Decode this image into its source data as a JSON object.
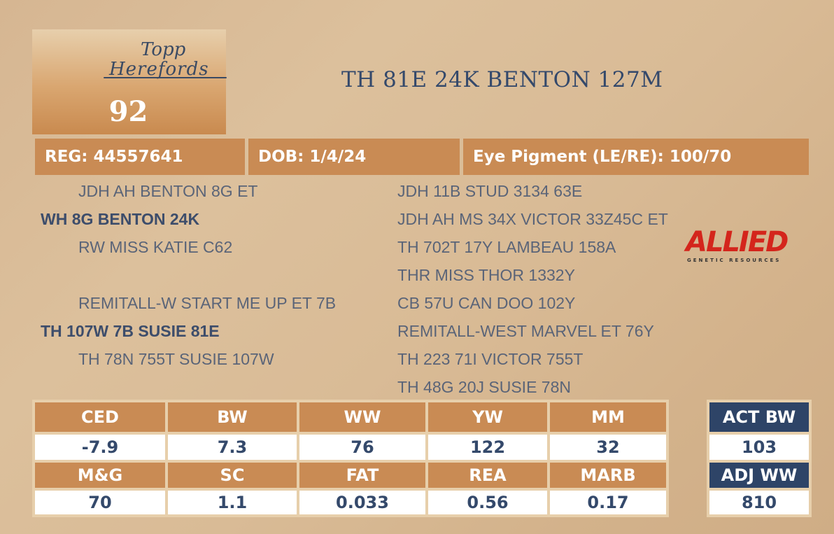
{
  "logo": {
    "line1": "Topp",
    "line2": "Herefords"
  },
  "lot_number": "92",
  "animal_name": "TH 81E 24K BENTON 127M",
  "info": {
    "reg": "REG: 44557641",
    "dob": "DOB: 1/4/24",
    "eye_pigment": "Eye Pigment (LE/RE): 100/70"
  },
  "pedigree_left": [
    "JDH AH BENTON 8G ET",
    "WH 8G BENTON 24K",
    "RW MISS KATIE C62",
    "REMITALL-W START ME UP ET 7B",
    "TH 107W 7B SUSIE 81E",
    "TH 78N 755T SUSIE 107W"
  ],
  "pedigree_right": [
    "JDH 11B STUD 3134 63E",
    "JDH AH MS 34X VICTOR 33Z45C ET",
    "TH 702T 17Y LAMBEAU 158A",
    "THR MISS THOR 1332Y",
    "CB 57U CAN DOO 102Y",
    "REMITALL-WEST MARVEL ET 76Y",
    "TH 223 71I VICTOR 755T",
    "TH 48G 20J SUSIE 78N"
  ],
  "allied_logo": {
    "main": "ALLIED",
    "sub": "GENETIC RESOURCES",
    "color": "#d4251c"
  },
  "epd_row1": {
    "headers": [
      "CED",
      "BW",
      "WW",
      "YW",
      "MM"
    ],
    "values": [
      "-7.9",
      "7.3",
      "76",
      "122",
      "32"
    ]
  },
  "epd_row2": {
    "headers": [
      "M&G",
      "SC",
      "FAT",
      "REA",
      "MARB"
    ],
    "values": [
      "70",
      "1.1",
      "0.033",
      "0.56",
      "0.17"
    ]
  },
  "actuals": {
    "act_bw_label": "ACT BW",
    "act_bw_value": "103",
    "adj_ww_label": "ADJ WW",
    "adj_ww_value": "810"
  },
  "colors": {
    "accent_orange": "#c98b54",
    "navy": "#2e4467",
    "text_navy": "#34496b"
  }
}
